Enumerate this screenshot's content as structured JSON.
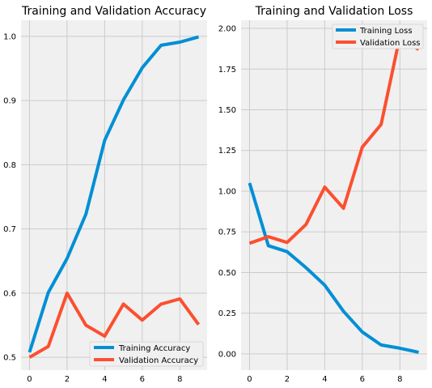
{
  "chart_data": [
    {
      "type": "line",
      "title": "Training and Validation Accuracy",
      "xlabel": "",
      "ylabel": "",
      "xlim": [
        -0.45,
        9.45
      ],
      "ylim": [
        0.48,
        1.025
      ],
      "xticks": [
        0,
        2,
        4,
        6,
        8
      ],
      "xtick_labels": [
        "0",
        "2",
        "4",
        "6",
        "8"
      ],
      "yticks": [
        0.5,
        0.6,
        0.7,
        0.8,
        0.9,
        1.0
      ],
      "ytick_labels": [
        "0.5",
        "0.6",
        "0.7",
        "0.8",
        "0.9",
        "1.0"
      ],
      "grid": true,
      "legend_position": "bottom-right",
      "x": [
        0,
        1,
        2,
        3,
        4,
        5,
        6,
        7,
        8,
        9
      ],
      "series": [
        {
          "name": "Training Accuracy",
          "color": "#008fd5",
          "values": [
            0.508,
            0.601,
            0.654,
            0.723,
            0.838,
            0.901,
            0.951,
            0.986,
            0.991,
            0.999
          ]
        },
        {
          "name": "Validation Accuracy",
          "color": "#fc4f30",
          "values": [
            0.5,
            0.517,
            0.6,
            0.55,
            0.533,
            0.583,
            0.558,
            0.583,
            0.591,
            0.551
          ]
        }
      ]
    },
    {
      "type": "line",
      "title": "Training and Validation Loss",
      "xlabel": "",
      "ylabel": "",
      "xlim": [
        -0.45,
        9.45
      ],
      "ylim": [
        -0.1,
        2.05
      ],
      "xticks": [
        0,
        2,
        4,
        6,
        8
      ],
      "xtick_labels": [
        "0",
        "2",
        "4",
        "6",
        "8"
      ],
      "yticks": [
        0.0,
        0.25,
        0.5,
        0.75,
        1.0,
        1.25,
        1.5,
        1.75,
        2.0
      ],
      "ytick_labels": [
        "0.00",
        "0.25",
        "0.50",
        "0.75",
        "1.00",
        "1.25",
        "1.50",
        "1.75",
        "2.00"
      ],
      "grid": true,
      "legend_position": "top-right",
      "x": [
        0,
        1,
        2,
        3,
        4,
        5,
        6,
        7,
        8,
        9
      ],
      "series": [
        {
          "name": "Training Loss",
          "color": "#008fd5",
          "values": [
            1.05,
            0.665,
            0.628,
            0.53,
            0.422,
            0.262,
            0.135,
            0.055,
            0.035,
            0.01
          ]
        },
        {
          "name": "Validation Loss",
          "color": "#fc4f30",
          "values": [
            0.68,
            0.72,
            0.685,
            0.795,
            1.025,
            0.895,
            1.27,
            1.41,
            1.95,
            1.87
          ]
        }
      ]
    }
  ]
}
